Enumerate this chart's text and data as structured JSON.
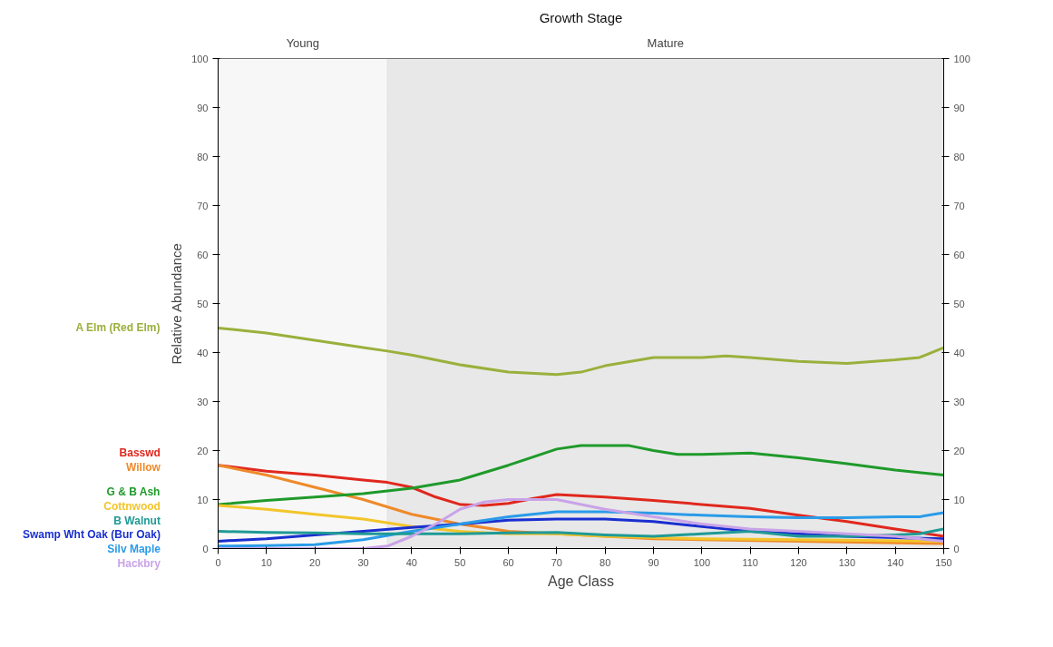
{
  "chart_data": {
    "type": "line",
    "title": "Growth Stage",
    "xlabel": "Age Class",
    "ylabel": "Relative Abundance",
    "xlim": [
      0,
      150
    ],
    "xticks": [
      0,
      10,
      20,
      30,
      40,
      50,
      60,
      70,
      80,
      90,
      100,
      110,
      120,
      130,
      140,
      150
    ],
    "ylim": [
      0,
      100
    ],
    "yticks": [
      0,
      10,
      20,
      30,
      40,
      50,
      60,
      70,
      80,
      90,
      100
    ],
    "y2lim": [
      0,
      100
    ],
    "y2ticks": [
      0,
      10,
      20,
      30,
      40,
      50,
      60,
      70,
      80,
      90,
      100
    ],
    "grid": "y",
    "marker": "none",
    "line_style": "solid",
    "bands": [
      {
        "axis": "x",
        "from": 0,
        "to": 35,
        "label": "Young",
        "color": "#f7f7f7"
      },
      {
        "axis": "x",
        "from": 35,
        "to": 150,
        "label": "Mature",
        "color": "#e8e8e8"
      }
    ],
    "series": [
      {
        "name": "A Elm (Red Elm)",
        "color": "#9ab03c",
        "x": [
          0,
          10,
          20,
          30,
          35,
          40,
          50,
          60,
          70,
          75,
          80,
          90,
          100,
          105,
          110,
          120,
          130,
          140,
          145,
          150
        ],
        "values": [
          45,
          44,
          42.5,
          41,
          40.3,
          39.5,
          37.5,
          36,
          35.5,
          36,
          37.3,
          39,
          39,
          39.3,
          39,
          38.2,
          37.8,
          38.5,
          39,
          41
        ]
      },
      {
        "name": "Basswd",
        "color": "#e0281e",
        "x": [
          0,
          10,
          20,
          30,
          35,
          40,
          45,
          50,
          55,
          60,
          65,
          70,
          80,
          90,
          100,
          110,
          120,
          130,
          140,
          150
        ],
        "values": [
          17,
          15.8,
          15,
          14,
          13.5,
          12.5,
          10.5,
          9,
          8.8,
          9.2,
          10.2,
          11,
          10.5,
          9.8,
          9,
          8.2,
          6.8,
          5.5,
          4,
          2.5
        ]
      },
      {
        "name": "Willow",
        "color": "#ef8a2a",
        "x": [
          0,
          10,
          20,
          30,
          40,
          50,
          60,
          70,
          80,
          90,
          100,
          120,
          150
        ],
        "values": [
          17,
          15,
          12.5,
          10,
          7,
          5,
          3.5,
          3,
          2.5,
          2,
          1.8,
          1.5,
          1
        ]
      },
      {
        "name": "G & B Ash",
        "color": "#1f9a2a",
        "x": [
          0,
          10,
          20,
          30,
          40,
          50,
          60,
          70,
          75,
          85,
          90,
          95,
          100,
          110,
          120,
          130,
          140,
          150
        ],
        "values": [
          9,
          9.8,
          10.5,
          11.2,
          12.3,
          14,
          17,
          20.3,
          21,
          21,
          20,
          19.2,
          19.2,
          19.5,
          18.5,
          17.3,
          16,
          15
        ]
      },
      {
        "name": "Cottnwood",
        "color": "#f2c52a",
        "x": [
          0,
          10,
          20,
          30,
          40,
          50,
          60,
          70,
          80,
          100,
          120,
          150
        ],
        "values": [
          8.8,
          8,
          7,
          6,
          4.5,
          3.5,
          3,
          3,
          2.5,
          2,
          1.8,
          1.5
        ]
      },
      {
        "name": "Swamp Wht Oak (Bur Oak)",
        "color": "#1a2fd0",
        "x": [
          0,
          10,
          20,
          30,
          40,
          50,
          60,
          70,
          80,
          90,
          100,
          110,
          120,
          130,
          140,
          150
        ],
        "values": [
          1.5,
          2,
          2.8,
          3.5,
          4.3,
          5,
          5.8,
          6,
          6,
          5.5,
          4.5,
          3.5,
          3,
          2.5,
          2.2,
          2
        ]
      },
      {
        "name": "Silv Maple",
        "color": "#2a9be8",
        "x": [
          0,
          10,
          20,
          30,
          40,
          50,
          60,
          70,
          80,
          90,
          100,
          110,
          120,
          130,
          140,
          145,
          150
        ],
        "values": [
          0.5,
          0.6,
          0.8,
          1.8,
          3.5,
          5,
          6.5,
          7.5,
          7.5,
          7.2,
          6.8,
          6.5,
          6.3,
          6.3,
          6.5,
          6.5,
          7.3
        ]
      },
      {
        "name": "B Walnut",
        "color": "#1f9a96",
        "x": [
          0,
          10,
          20,
          30,
          40,
          50,
          60,
          70,
          80,
          90,
          100,
          110,
          120,
          130,
          140,
          145,
          150
        ],
        "values": [
          3.5,
          3.3,
          3.2,
          3,
          3,
          3,
          3.2,
          3.3,
          2.8,
          2.5,
          3,
          3.5,
          2.5,
          2.5,
          2.8,
          3,
          4
        ]
      },
      {
        "name": "Hackbry",
        "color": "#c9a3e8",
        "x": [
          0,
          30,
          35,
          40,
          45,
          50,
          55,
          60,
          70,
          80,
          90,
          100,
          110,
          120,
          130,
          140,
          150
        ],
        "values": [
          0,
          0,
          0.5,
          2.5,
          5,
          8,
          9.5,
          10,
          10,
          8,
          6.5,
          5,
          4,
          3.5,
          3,
          2.5,
          1.5
        ]
      }
    ]
  }
}
